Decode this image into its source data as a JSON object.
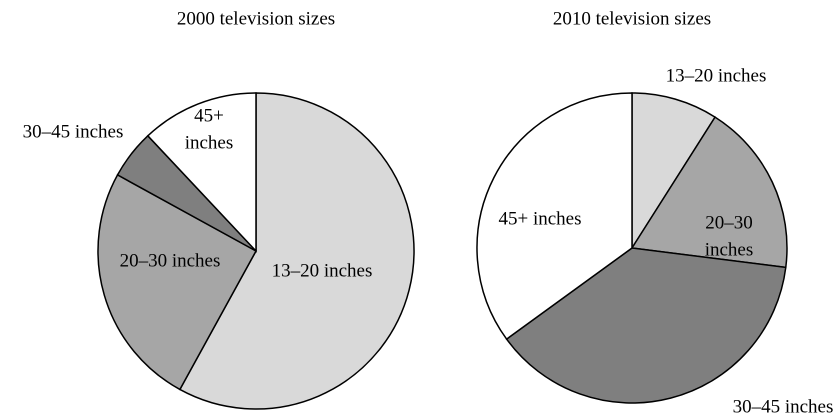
{
  "chart_data": [
    {
      "type": "pie",
      "title": "2000 television sizes",
      "categories": [
        "13–20 inches",
        "20–30 inches",
        "30–45 inches",
        "45+ inches"
      ],
      "values": [
        58,
        25,
        5,
        12
      ],
      "colors": [
        "#d9d9d9",
        "#a6a6a6",
        "#7f7f7f",
        "#ffffff"
      ]
    },
    {
      "type": "pie",
      "title": "2010 television sizes",
      "categories": [
        "13–20 inches",
        "20–30 inches",
        "30–45 inches",
        "45+ inches"
      ],
      "values": [
        9,
        18,
        38,
        35
      ],
      "colors": [
        "#d9d9d9",
        "#a6a6a6",
        "#7f7f7f",
        "#ffffff"
      ]
    }
  ]
}
